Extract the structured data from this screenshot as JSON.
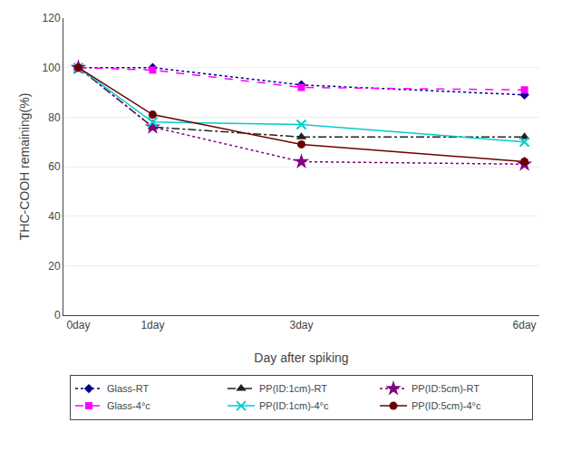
{
  "chart_data": {
    "type": "line",
    "xlabel": "Day after spiking",
    "ylabel": "THC-COOH remaining(%)",
    "x": [
      0,
      1,
      3,
      6
    ],
    "xlim": [
      -0.2,
      6.2
    ],
    "xticks": [
      {
        "value": 0,
        "label": "0day"
      },
      {
        "value": 1,
        "label": "1day"
      },
      {
        "value": 3,
        "label": "3day"
      },
      {
        "value": 6,
        "label": "6day"
      }
    ],
    "ylim": [
      0,
      120
    ],
    "yticks": [
      0,
      20,
      40,
      60,
      80,
      100,
      120
    ],
    "grid": "y",
    "legend": "bottom",
    "series": [
      {
        "name": "Glass-RT",
        "color": "#00008B",
        "line_style": "dotted",
        "marker": "diamond",
        "values": [
          100,
          100,
          93,
          89
        ]
      },
      {
        "name": "PP(ID:1cm)-RT",
        "color": "#222222",
        "line_style": "dashdot",
        "marker": "triangle",
        "values": [
          100,
          76,
          72,
          72
        ]
      },
      {
        "name": "PP(ID:5cm)-RT",
        "color": "#800080",
        "line_style": "dotted",
        "marker": "star",
        "values": [
          100,
          76,
          62,
          61
        ]
      },
      {
        "name": "Glass-4°c",
        "color": "#FF00FF",
        "line_style": "dashed",
        "marker": "square",
        "values": [
          100,
          99,
          92,
          91
        ]
      },
      {
        "name": "PP(ID:1cm)-4°c",
        "color": "#00CCCC",
        "line_style": "solid",
        "marker": "x",
        "values": [
          100,
          78,
          77,
          70
        ]
      },
      {
        "name": "PP(ID:5cm)-4°c",
        "color": "#6B0000",
        "line_style": "solid",
        "marker": "circle",
        "values": [
          100,
          81,
          69,
          62
        ]
      }
    ]
  }
}
